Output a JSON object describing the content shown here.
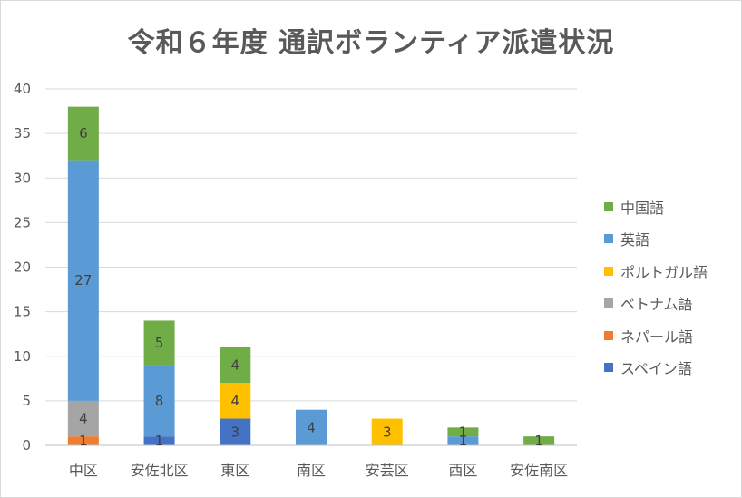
{
  "chart_data": {
    "type": "bar",
    "stacked": true,
    "title": "令和６年度 通訳ボランティア派遣状況",
    "categories": [
      "中区",
      "安佐北区",
      "東区",
      "南区",
      "安芸区",
      "西区",
      "安佐南区"
    ],
    "ylim": [
      0,
      40
    ],
    "yticks": [
      0,
      5,
      10,
      15,
      20,
      25,
      30,
      35,
      40
    ],
    "grid": true,
    "legend_position": "right",
    "series": [
      {
        "name": "スペイン語",
        "color": "#4472c4",
        "values": [
          0,
          1,
          3,
          0,
          0,
          0,
          0
        ]
      },
      {
        "name": "ネパール語",
        "color": "#ed7d31",
        "values": [
          1,
          0,
          0,
          0,
          0,
          0,
          0
        ]
      },
      {
        "name": "ベトナム語",
        "color": "#a5a5a5",
        "values": [
          4,
          0,
          0,
          0,
          0,
          0,
          0
        ]
      },
      {
        "name": "ポルトガル語",
        "color": "#ffc000",
        "values": [
          0,
          0,
          4,
          0,
          3,
          0,
          0
        ]
      },
      {
        "name": "英語",
        "color": "#5b9bd5",
        "values": [
          27,
          8,
          0,
          4,
          0,
          1,
          0
        ]
      },
      {
        "name": "中国語",
        "color": "#70ad47",
        "values": [
          6,
          5,
          4,
          0,
          0,
          1,
          1
        ]
      }
    ],
    "data_labels": [
      {
        "series": 1,
        "category": 0,
        "text": "1"
      },
      {
        "series": 2,
        "category": 0,
        "text": "4"
      },
      {
        "series": 4,
        "category": 0,
        "text": "27"
      },
      {
        "series": 5,
        "category": 0,
        "text": "6"
      },
      {
        "series": 0,
        "category": 1,
        "text": "1"
      },
      {
        "series": 4,
        "category": 1,
        "text": "8"
      },
      {
        "series": 5,
        "category": 1,
        "text": "5"
      },
      {
        "series": 0,
        "category": 2,
        "text": "3"
      },
      {
        "series": 3,
        "category": 2,
        "text": "4"
      },
      {
        "series": 5,
        "category": 2,
        "text": "4"
      },
      {
        "series": 4,
        "category": 3,
        "text": "4"
      },
      {
        "series": 3,
        "category": 4,
        "text": "3"
      },
      {
        "series": 4,
        "category": 5,
        "text": "1"
      },
      {
        "series": 5,
        "category": 5,
        "text": "1"
      },
      {
        "series": 5,
        "category": 6,
        "text": "1"
      }
    ]
  }
}
